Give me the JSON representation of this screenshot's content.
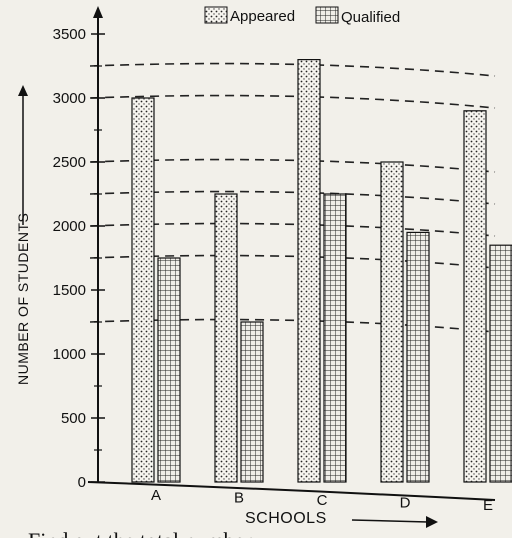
{
  "chart_data": {
    "type": "bar",
    "categories": [
      "A",
      "B",
      "C",
      "D",
      "E"
    ],
    "series": [
      {
        "name": "Appeared",
        "values": [
          3000,
          2250,
          3300,
          2500,
          2900
        ]
      },
      {
        "name": "Qualified",
        "values": [
          1750,
          1250,
          2250,
          1950,
          1850
        ]
      }
    ],
    "xlabel": "SCHOOLS",
    "ylabel": "NUMBER OF STUDENTS",
    "ylim": [
      0,
      3500
    ],
    "yticks": [
      0,
      500,
      1000,
      1500,
      2000,
      2500,
      3000,
      3500
    ],
    "reference_lines": [
      3250,
      3000,
      2500,
      2250,
      2000,
      1750,
      1250
    ],
    "legend_position": "top-center",
    "grid": false
  },
  "caption": "Find out the total number"
}
